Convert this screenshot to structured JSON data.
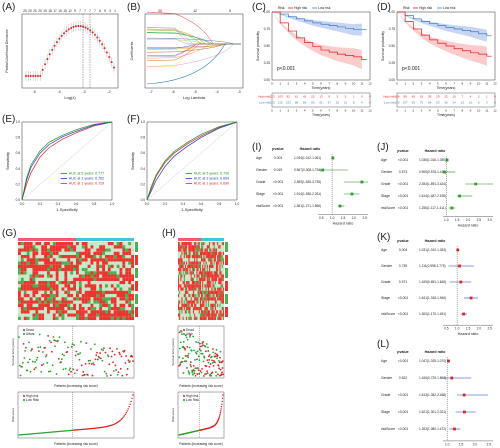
{
  "panels": {
    "A": {
      "label": "(A)",
      "xlabel": "Log(λ)",
      "ylabel": "Partial Likelihood Deviance",
      "top_ticks": [
        "20",
        "20",
        "20",
        "20",
        "19",
        "18",
        "17",
        "16",
        "15",
        "12",
        "9",
        "7",
        "7",
        "7",
        "7",
        "6",
        "5",
        "3",
        "1"
      ],
      "xticks": [
        "-5",
        "-4",
        "-3",
        "-2"
      ]
    },
    "B": {
      "label": "(B)",
      "xlabel": "Log Lambda",
      "ylabel": "Coefficients",
      "top_ticks": [
        "20",
        "12",
        "5"
      ],
      "xticks": [
        "-7",
        "-6",
        "-5",
        "-4",
        "-3"
      ]
    },
    "C": {
      "label": "(C)",
      "xlabel": "Time(years)",
      "ylabel": "Survival probability",
      "pvalue": "p<0.001",
      "legend_title": "Risk",
      "legend": [
        "High risk",
        "Low risk"
      ],
      "xticks": [
        "0",
        "1",
        "2",
        "3",
        "4",
        "5",
        "6",
        "7",
        "8",
        "9",
        "10",
        "11",
        "12"
      ],
      "risk_high": [
        "123",
        "103",
        "82",
        "61",
        "41",
        "25",
        "13",
        "6",
        "3",
        "2",
        "1",
        "0",
        "0"
      ],
      "risk_low": [
        "123",
        "115",
        "103",
        "95",
        "89",
        "69",
        "51",
        "37",
        "25",
        "15",
        "8",
        "4",
        "0"
      ]
    },
    "D": {
      "label": "(D)",
      "xlabel": "Time(years)",
      "ylabel": "Survival probability",
      "pvalue": "p<0.001",
      "legend_title": "Risk",
      "legend": [
        "High risk",
        "Low risk"
      ],
      "xticks": [
        "0",
        "1",
        "2",
        "3",
        "4",
        "5",
        "6",
        "7",
        "8",
        "9",
        "10",
        "11",
        "12"
      ],
      "risk_high": [
        "106",
        "89",
        "69",
        "51",
        "39",
        "29",
        "22",
        "16",
        "7",
        "4",
        "2",
        "1",
        "0"
      ],
      "risk_low": [
        "125",
        "107",
        "90",
        "75",
        "64",
        "53",
        "36",
        "24",
        "15",
        "10",
        "6",
        "3",
        "0"
      ]
    },
    "E": {
      "label": "(E)",
      "xlabel": "1-Specificity",
      "ylabel": "Sensitivity",
      "auc": [
        "AUC at 1 years: 0.729",
        "AUC at 3 years: 0.762",
        "AUC at 5 years: 0.777"
      ]
    },
    "F": {
      "label": "(F)",
      "xlabel": "1-Specificity",
      "ylabel": "Sensitivity",
      "auc": [
        "AUC at 1 years: 0.690",
        "AUC at 3 years: 0.664",
        "AUC at 5 years: 0.706"
      ]
    },
    "G": {
      "label": "(G)",
      "surv_ylabel": "Survival time (years)",
      "surv_xlabel": "Patients (increasing risk score)",
      "risk_ylabel": "Risk score",
      "risk_xlabel": "Patients (increasing risk score)",
      "legend_status": [
        "Dead",
        "Alive"
      ],
      "legend_risk": [
        "High risk",
        "Low Risk"
      ]
    },
    "H": {
      "label": "(H)",
      "surv_ylabel": "Survival time (years)",
      "surv_xlabel": "Patients (increasing risk score)",
      "risk_ylabel": "Risk score",
      "risk_xlabel": "Patients (increasing risk score)",
      "legend_status": [
        "Dead",
        "Alive"
      ],
      "legend_risk": [
        "High risk",
        "Low Risk"
      ]
    },
    "I": {
      "label": "(I)",
      "col_p": "pvalue",
      "col_hr": "Hazard ratio",
      "xlabel": "Hazard ratio",
      "xticks": [
        "0.5",
        "1.0",
        "1.5",
        "2.0",
        "2.5"
      ],
      "rows": [
        {
          "name": "Age",
          "p": "0.003",
          "hr": "1.034(1.012-1.061)",
          "v": 1.034,
          "lo": 1.012,
          "hi": 1.061
        },
        {
          "name": "Gender",
          "p": "0.019",
          "hr": "0.567(0.308-1.724)",
          "v": 0.567,
          "lo": 0.308,
          "hi": 1.724
        },
        {
          "name": "Grade",
          "p": "<0.001",
          "hr": "2.369(1.535-3.735)",
          "v": 2.369,
          "lo": 1.535,
          "hi": 3.735
        },
        {
          "name": "Stage",
          "p": "<0.001",
          "hr": "1.914(1.536-2.261)",
          "v": 1.914,
          "lo": 1.536,
          "hi": 2.261
        },
        {
          "name": "riskScore",
          "p": "<0.001",
          "hr": "1.361(1.271-1.566)",
          "v": 1.361,
          "lo": 1.271,
          "hi": 1.566
        }
      ]
    },
    "J": {
      "label": "(J)",
      "col_p": "pvalue",
      "col_hr": "Hazard ratio",
      "xlabel": "Hazard ratio",
      "xticks": [
        "1.0",
        "1.5",
        "2.0",
        "2.5",
        "3.0"
      ],
      "rows": [
        {
          "name": "Age",
          "p": "<0.001",
          "hr": "1.036(1.016-1.050)",
          "v": 1.036,
          "lo": 1.016,
          "hi": 1.05
        },
        {
          "name": "Gender",
          "p": "0.573",
          "hr": "0.906(0.578-1.414)",
          "v": 0.906,
          "lo": 0.578,
          "hi": 1.414
        },
        {
          "name": "Grade",
          "p": "<0.001",
          "hr": "2.354(1.891-3.424)",
          "v": 2.354,
          "lo": 1.891,
          "hi": 3.424
        },
        {
          "name": "Stage",
          "p": "<0.001",
          "hr": "1.614(1.487-2.196)",
          "v": 1.614,
          "lo": 1.487,
          "hi": 2.196
        },
        {
          "name": "riskScore",
          "p": "<0.001",
          "hr": "1.256(1.117-1.411)",
          "v": 1.256,
          "lo": 1.117,
          "hi": 1.411
        }
      ]
    },
    "K": {
      "label": "(K)",
      "col_p": "pvalue",
      "col_hr": "Hazard ratio",
      "xlabel": "Hazard ratio",
      "xticks": [
        "0.5",
        "1.0",
        "1.5",
        "2.0",
        "2.5"
      ],
      "rows": [
        {
          "name": "Age",
          "p": "0.004",
          "hr": "1.031(1.010-1.053)",
          "v": 1.031,
          "lo": 1.01,
          "hi": 1.053
        },
        {
          "name": "Gender",
          "p": "0.739",
          "hr": "1.111(0.598-1.775)",
          "v": 1.111,
          "lo": 0.598,
          "hi": 1.775
        },
        {
          "name": "Grade",
          "p": "0.971",
          "hr": "1.169(0.651-1.645)",
          "v": 1.169,
          "lo": 0.651,
          "hi": 1.645
        },
        {
          "name": "Stage",
          "p": "<0.001",
          "hr": "1.641(1.318-1.946)",
          "v": 1.641,
          "lo": 1.318,
          "hi": 1.946
        },
        {
          "name": "riskScore",
          "p": "<0.001",
          "hr": "1.300(1.170-1.451)",
          "v": 1.3,
          "lo": 1.17,
          "hi": 1.451
        }
      ]
    },
    "L": {
      "label": "(L)",
      "col_p": "pvalue",
      "col_hr": "Hazard ratio",
      "xlabel": "Hazard ratio",
      "xticks": [
        "1.0",
        "1.5",
        "2.0",
        "2.5"
      ],
      "rows": [
        {
          "name": "Age",
          "p": "<0.001",
          "hr": "1.047(1.025-1.070)",
          "v": 1.047,
          "lo": 1.025,
          "hi": 1.07
        },
        {
          "name": "Gender",
          "p": "0.522",
          "hr": "1.166(0.729-1.863)",
          "v": 1.166,
          "lo": 0.729,
          "hi": 1.863
        },
        {
          "name": "Grade",
          "p": "<0.001",
          "hr": "1.613(1.352-2.468)",
          "v": 1.613,
          "lo": 1.352,
          "hi": 2.468
        },
        {
          "name": "Stage",
          "p": "<0.001",
          "hr": "1.621(1.301-2.021)",
          "v": 1.621,
          "lo": 1.301,
          "hi": 2.021
        },
        {
          "name": "riskScore",
          "p": "<0.001",
          "hr": "1.263(1.080-1.472)",
          "v": 1.263,
          "lo": 1.08,
          "hi": 1.472
        }
      ]
    }
  },
  "colors": {
    "high": "#e41a1c",
    "low": "#377eb8",
    "low_fill": "#9ab3e8",
    "high_fill": "#f5a3a3",
    "dead": "#d62728",
    "alive": "#2ca02c",
    "auc1": "#d62728",
    "auc3": "#1f3fbf",
    "auc5": "#228b22",
    "heat_red": "#e8352d",
    "heat_green": "#4caf50",
    "bar_cyan": "#3ec3e0",
    "bar_pink": "#f25c6e"
  },
  "chart_data": [
    {
      "type": "line",
      "panel": "C",
      "title": "",
      "xlabel": "Time(years)",
      "ylabel": "Survival probability",
      "xlim": [
        0,
        12
      ],
      "ylim": [
        0,
        1
      ],
      "series": [
        {
          "name": "High risk",
          "x": [
            0,
            1,
            2,
            3,
            4,
            5,
            6,
            7,
            8,
            9,
            10,
            11
          ],
          "y": [
            1.0,
            0.84,
            0.72,
            0.62,
            0.55,
            0.49,
            0.44,
            0.41,
            0.38,
            0.36,
            0.34,
            0.3
          ]
        },
        {
          "name": "Low risk",
          "x": [
            0,
            1,
            2,
            3,
            4,
            5,
            6,
            7,
            8,
            9,
            10,
            11
          ],
          "y": [
            1.0,
            0.97,
            0.93,
            0.9,
            0.87,
            0.84,
            0.82,
            0.8,
            0.78,
            0.76,
            0.74,
            0.74
          ]
        }
      ]
    },
    {
      "type": "line",
      "panel": "D",
      "title": "",
      "xlabel": "Time(years)",
      "ylabel": "Survival probability",
      "xlim": [
        0,
        12
      ],
      "ylim": [
        0,
        1
      ],
      "series": [
        {
          "name": "High risk",
          "x": [
            0,
            1,
            2,
            3,
            4,
            5,
            6,
            7,
            8,
            9,
            10,
            11
          ],
          "y": [
            1.0,
            0.86,
            0.75,
            0.66,
            0.59,
            0.54,
            0.5,
            0.46,
            0.43,
            0.4,
            0.38,
            0.35
          ]
        },
        {
          "name": "Low risk",
          "x": [
            0,
            1,
            2,
            3,
            4,
            5,
            6,
            7,
            8,
            9,
            10,
            11
          ],
          "y": [
            1.0,
            0.95,
            0.9,
            0.86,
            0.83,
            0.8,
            0.77,
            0.75,
            0.73,
            0.71,
            0.68,
            0.65
          ]
        }
      ]
    },
    {
      "type": "line",
      "panel": "E",
      "xlabel": "1-Specificity",
      "ylabel": "Sensitivity",
      "xlim": [
        0,
        1
      ],
      "ylim": [
        0,
        1
      ],
      "series": [
        {
          "name": "AUC at 1 years: 0.729",
          "x": [
            0,
            0.05,
            0.1,
            0.2,
            0.3,
            0.45,
            0.6,
            0.8,
            1
          ],
          "y": [
            0,
            0.2,
            0.35,
            0.55,
            0.67,
            0.78,
            0.86,
            0.95,
            1
          ]
        },
        {
          "name": "AUC at 3 years: 0.762",
          "x": [
            0,
            0.05,
            0.1,
            0.2,
            0.3,
            0.45,
            0.6,
            0.8,
            1
          ],
          "y": [
            0,
            0.25,
            0.42,
            0.6,
            0.71,
            0.81,
            0.88,
            0.96,
            1
          ]
        },
        {
          "name": "AUC at 5 years: 0.777",
          "x": [
            0,
            0.05,
            0.1,
            0.2,
            0.3,
            0.45,
            0.6,
            0.8,
            1
          ],
          "y": [
            0,
            0.28,
            0.45,
            0.63,
            0.74,
            0.83,
            0.9,
            0.97,
            1
          ]
        }
      ]
    },
    {
      "type": "line",
      "panel": "F",
      "xlabel": "1-Specificity",
      "ylabel": "Sensitivity",
      "xlim": [
        0,
        1
      ],
      "ylim": [
        0,
        1
      ],
      "series": [
        {
          "name": "AUC at 1 years: 0.690",
          "x": [
            0,
            0.05,
            0.1,
            0.2,
            0.3,
            0.45,
            0.6,
            0.8,
            1
          ],
          "y": [
            0,
            0.15,
            0.3,
            0.48,
            0.6,
            0.72,
            0.82,
            0.93,
            1
          ]
        },
        {
          "name": "AUC at 3 years: 0.664",
          "x": [
            0,
            0.05,
            0.1,
            0.2,
            0.3,
            0.45,
            0.6,
            0.8,
            1
          ],
          "y": [
            0,
            0.12,
            0.25,
            0.43,
            0.56,
            0.69,
            0.8,
            0.92,
            1
          ]
        },
        {
          "name": "AUC at 5 years: 0.706",
          "x": [
            0,
            0.05,
            0.1,
            0.2,
            0.3,
            0.45,
            0.6,
            0.8,
            1
          ],
          "y": [
            0,
            0.18,
            0.32,
            0.5,
            0.62,
            0.74,
            0.84,
            0.94,
            1
          ]
        }
      ]
    }
  ]
}
